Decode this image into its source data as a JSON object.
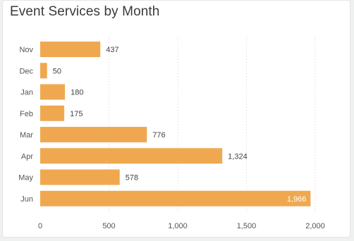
{
  "chart_data": {
    "type": "bar",
    "orientation": "horizontal",
    "title": "Event Services by Month",
    "categories": [
      "Nov",
      "Dec",
      "Jan",
      "Feb",
      "Mar",
      "Apr",
      "May",
      "Jun"
    ],
    "values": [
      437,
      50,
      180,
      175,
      776,
      1324,
      578,
      1966
    ],
    "value_labels": [
      "437",
      "50",
      "180",
      "175",
      "776",
      "1,324",
      "578",
      "1,966"
    ],
    "xlim": [
      0,
      2000
    ],
    "xticks": [
      0,
      500,
      1000,
      1500,
      2000
    ],
    "xtick_labels": [
      "0",
      "500",
      "1,000",
      "1,500",
      "2,000"
    ],
    "xlabel": "",
    "ylabel": "",
    "grid": "vertical dotted",
    "bar_color": "#f0a850",
    "legend": "none"
  }
}
